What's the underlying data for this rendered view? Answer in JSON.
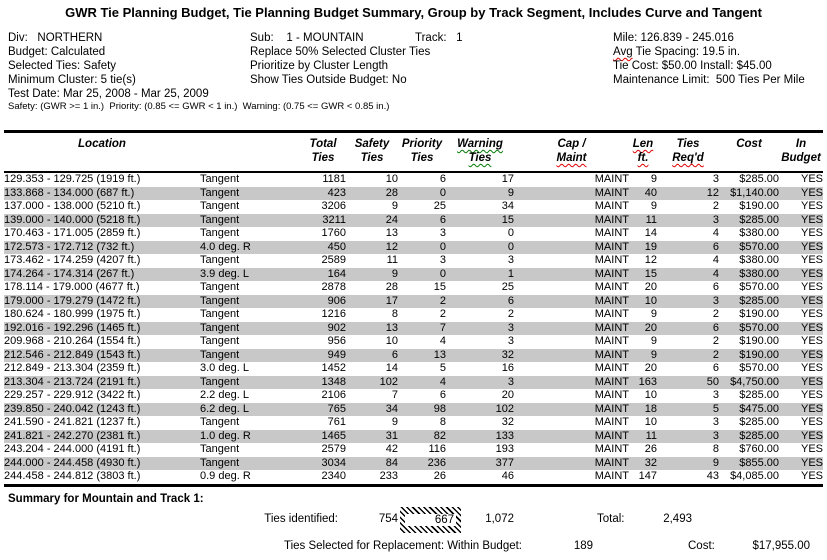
{
  "title": "GWR Tie Planning Budget, Tie Planning Budget Summary, Group by Track Segment, Includes Curve and Tangent",
  "info": {
    "left": [
      "Div:   NORTHERN",
      "Budget: Calculated",
      "Selected Ties: Safety",
      "Minimum Cluster: 5 tie(s)",
      "Test Date: Mar 25, 2008 - Mar 25, 2009"
    ],
    "middle": [
      "Sub:    1 - MOUNTAIN",
      "Replace 50% Selected Cluster Ties",
      "Prioritize by Cluster Length",
      "Show Ties Outside Budget: No"
    ],
    "track": "Track:   1",
    "right": {
      "mile": "Mile: 126.839 - 245.016",
      "avg_word": "Avg",
      "avg_rest": " Tie Spacing: 19.5 in.",
      "tie_cost": "Tie Cost: $50.00 Install: $45.00",
      "maintenance": "Maintenance Limit:  500 Ties Per Mile"
    },
    "criteria": "Safety: (GWR >= 1 in.)  Priority: (0.85 <= GWR < 1 in.)  Warning: (0.75 <= GWR < 0.85 in.)"
  },
  "table": {
    "columns": [
      {
        "line1": "Location",
        "line2": ""
      },
      {
        "line1": "",
        "line2": ""
      },
      {
        "line1": "Total",
        "line2": "Ties"
      },
      {
        "line1": "Safety",
        "line2": "Ties"
      },
      {
        "line1": "Priority",
        "line2": "Ties"
      },
      {
        "line1": "Warning",
        "line2": "Ties"
      },
      {
        "line1": "Cap /",
        "line2": "Maint"
      },
      {
        "line1": "Len",
        "line2": "ft."
      },
      {
        "line1": "Ties",
        "line2": "Req'd"
      },
      {
        "line1": "Cost",
        "line2": ""
      },
      {
        "line1": "In",
        "line2": "Budget"
      }
    ],
    "rows": [
      [
        "129.353 - 129.725 (1919 ft.)",
        "Tangent",
        "1181",
        "10",
        "6",
        "17",
        "MAINT",
        "9",
        "3",
        "$285.00",
        "YES"
      ],
      [
        "133.868 - 134.000 (687 ft.)",
        "Tangent",
        "423",
        "28",
        "0",
        "9",
        "MAINT",
        "40",
        "12",
        "$1,140.00",
        "YES"
      ],
      [
        "137.000 - 138.000 (5210 ft.)",
        "Tangent",
        "3206",
        "9",
        "25",
        "34",
        "MAINT",
        "9",
        "2",
        "$190.00",
        "YES"
      ],
      [
        "139.000 - 140.000 (5218 ft.)",
        "Tangent",
        "3211",
        "24",
        "6",
        "15",
        "MAINT",
        "11",
        "3",
        "$285.00",
        "YES"
      ],
      [
        "170.463 - 171.005 (2859 ft.)",
        "Tangent",
        "1760",
        "13",
        "3",
        "0",
        "MAINT",
        "14",
        "4",
        "$380.00",
        "YES"
      ],
      [
        "172.573 - 172.712 (732 ft.)",
        "4.0 deg. R",
        "450",
        "12",
        "0",
        "0",
        "MAINT",
        "19",
        "6",
        "$570.00",
        "YES"
      ],
      [
        "173.462 - 174.259 (4207 ft.)",
        "Tangent",
        "2589",
        "11",
        "3",
        "3",
        "MAINT",
        "12",
        "4",
        "$380.00",
        "YES"
      ],
      [
        "174.264 - 174.314 (267 ft.)",
        "3.9 deg. L",
        "164",
        "9",
        "0",
        "1",
        "MAINT",
        "15",
        "4",
        "$380.00",
        "YES"
      ],
      [
        "178.114 - 179.000 (4677 ft.)",
        "Tangent",
        "2878",
        "28",
        "15",
        "25",
        "MAINT",
        "20",
        "6",
        "$570.00",
        "YES"
      ],
      [
        "179.000 - 179.279 (1472 ft.)",
        "Tangent",
        "906",
        "17",
        "2",
        "6",
        "MAINT",
        "10",
        "3",
        "$285.00",
        "YES"
      ],
      [
        "180.624 - 180.999 (1975 ft.)",
        "Tangent",
        "1216",
        "8",
        "2",
        "2",
        "MAINT",
        "9",
        "2",
        "$190.00",
        "YES"
      ],
      [
        "192.016 - 192.296 (1465 ft.)",
        "Tangent",
        "902",
        "13",
        "7",
        "3",
        "MAINT",
        "20",
        "6",
        "$570.00",
        "YES"
      ],
      [
        "209.968 - 210.264 (1554 ft.)",
        "Tangent",
        "956",
        "10",
        "4",
        "3",
        "MAINT",
        "9",
        "2",
        "$190.00",
        "YES"
      ],
      [
        "212.546 - 212.849 (1543 ft.)",
        "Tangent",
        "949",
        "6",
        "13",
        "32",
        "MAINT",
        "9",
        "2",
        "$190.00",
        "YES"
      ],
      [
        "212.849 - 213.304 (2359 ft.)",
        "3.0 deg. L",
        "1452",
        "14",
        "5",
        "16",
        "MAINT",
        "20",
        "6",
        "$570.00",
        "YES"
      ],
      [
        "213.304 - 213.724 (2191 ft.)",
        "Tangent",
        "1348",
        "102",
        "4",
        "3",
        "MAINT",
        "163",
        "50",
        "$4,750.00",
        "YES"
      ],
      [
        "229.257 - 229.912 (3422 ft.)",
        "2.2 deg. L",
        "2106",
        "7",
        "6",
        "20",
        "MAINT",
        "10",
        "3",
        "$285.00",
        "YES"
      ],
      [
        "239.850 - 240.042 (1243 ft.)",
        "6.2 deg. L",
        "765",
        "34",
        "98",
        "102",
        "MAINT",
        "18",
        "5",
        "$475.00",
        "YES"
      ],
      [
        "241.590 - 241.821 (1237 ft.)",
        "Tangent",
        "761",
        "9",
        "8",
        "32",
        "MAINT",
        "10",
        "3",
        "$285.00",
        "YES"
      ],
      [
        "241.821 - 242.270 (2381 ft.)",
        "1.0 deg. R",
        "1465",
        "31",
        "82",
        "133",
        "MAINT",
        "11",
        "3",
        "$285.00",
        "YES"
      ],
      [
        "243.204 - 244.000 (4191 ft.)",
        "Tangent",
        "2579",
        "42",
        "116",
        "193",
        "MAINT",
        "26",
        "8",
        "$760.00",
        "YES"
      ],
      [
        "244.000 - 244.458 (4930 ft.)",
        "Tangent",
        "3034",
        "84",
        "236",
        "377",
        "MAINT",
        "32",
        "9",
        "$855.00",
        "YES"
      ],
      [
        "244.458 - 244.812 (3803 ft.)",
        "0.9 deg. R",
        "2340",
        "233",
        "26",
        "46",
        "MAINT",
        "147",
        "43",
        "$4,085.00",
        "YES"
      ]
    ]
  },
  "summary": {
    "heading": "Summary for Mountain and Track 1:",
    "ties_identified_label": "Ties identified:",
    "safety_count": "754",
    "priority_count": "667",
    "warning_count": "1,072",
    "total_label": "Total:",
    "total_value": "2,493",
    "selected_label": "Ties Selected for Replacement: Within Budget:",
    "within_budget_value": "189",
    "cost_label": "Cost:",
    "cost_value": "$17,955.00"
  },
  "colors": {
    "stripe_gray": "#c8c8c8",
    "spell_error_red": "#e00000",
    "grammar_error_green": "#007800"
  }
}
